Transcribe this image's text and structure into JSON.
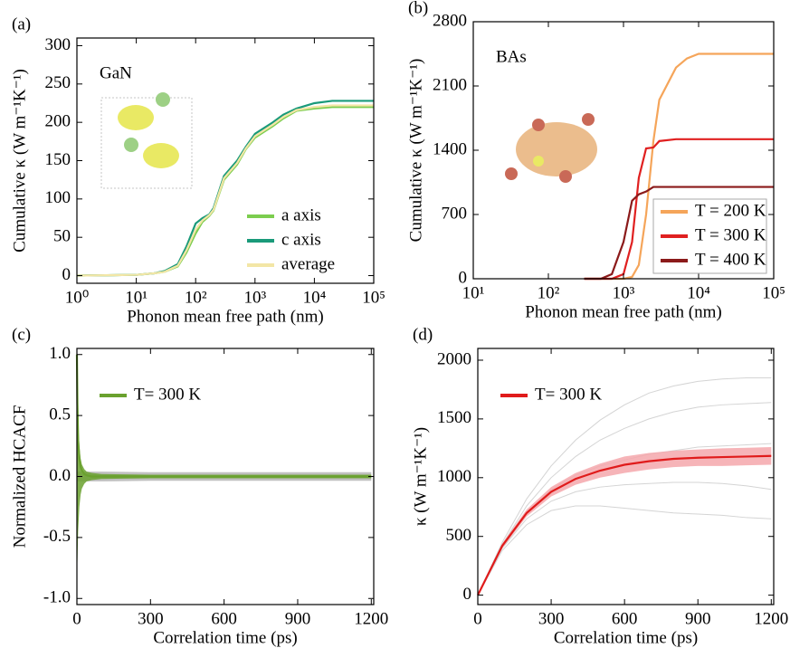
{
  "chart_data": [
    {
      "type": "line",
      "panel_label": "(a)",
      "annotation": "GaN",
      "x_label": "Phonon mean free path (nm)",
      "y_label": "Cumulative κ (W m⁻¹K⁻¹)",
      "x_scale": "log",
      "xlim": [
        1,
        100000
      ],
      "xticks": [
        {
          "value": 1,
          "label": "10⁰"
        },
        {
          "value": 10,
          "label": "10¹"
        },
        {
          "value": 100,
          "label": "10²"
        },
        {
          "value": 1000,
          "label": "10³"
        },
        {
          "value": 10000,
          "label": "10⁴"
        },
        {
          "value": 100000,
          "label": "10⁵"
        }
      ],
      "ylim": [
        -10,
        310
      ],
      "yticks": [
        0,
        50,
        100,
        150,
        200,
        250,
        300
      ],
      "legend": "lower right",
      "x": [
        1,
        10,
        20,
        30,
        50,
        70,
        100,
        130,
        170,
        200,
        300,
        500,
        700,
        1000,
        2000,
        3000,
        5000,
        10000,
        20000,
        100000
      ],
      "series": [
        {
          "name": "a axis",
          "color": "#7ccd4f",
          "values": [
            0,
            1,
            3,
            5,
            12,
            30,
            55,
            70,
            78,
            85,
            125,
            145,
            165,
            180,
            195,
            205,
            215,
            218,
            220,
            220
          ]
        },
        {
          "name": "c axis",
          "color": "#1a9a7a",
          "values": [
            0,
            1,
            3,
            6,
            15,
            38,
            68,
            75,
            80,
            88,
            130,
            150,
            168,
            185,
            200,
            210,
            218,
            225,
            228,
            228
          ]
        },
        {
          "name": "average",
          "color": "#f3e6a6",
          "values": [
            0,
            1,
            3,
            5,
            13,
            33,
            60,
            72,
            79,
            86,
            127,
            147,
            166,
            182,
            197,
            207,
            216,
            220,
            222,
            222
          ]
        }
      ]
    },
    {
      "type": "line",
      "panel_label": "(b)",
      "annotation": "BAs",
      "x_label": "Phonon mean free path (nm)",
      "y_label": "Cumulative κ (W m⁻¹K⁻¹)",
      "x_scale": "log",
      "xlim": [
        10,
        100000
      ],
      "xticks": [
        {
          "value": 10,
          "label": "10¹"
        },
        {
          "value": 100,
          "label": "10²"
        },
        {
          "value": 1000,
          "label": "10³"
        },
        {
          "value": 10000,
          "label": "10⁴"
        },
        {
          "value": 100000,
          "label": "10⁵"
        }
      ],
      "ylim": [
        0,
        2800
      ],
      "yticks": [
        0,
        700,
        1400,
        2100,
        2800
      ],
      "legend": "lower right",
      "legend_frame": true,
      "x": [
        300,
        500,
        700,
        1000,
        1300,
        1600,
        2000,
        2500,
        3000,
        5000,
        7000,
        10000,
        100000
      ],
      "series": [
        {
          "name": "T = 200 K",
          "color": "#f5a55a",
          "values": [
            0,
            0,
            0,
            0,
            20,
            150,
            700,
            1500,
            1950,
            2300,
            2400,
            2450,
            2450
          ]
        },
        {
          "name": "T = 300 K",
          "color": "#e02020",
          "values": [
            0,
            0,
            0,
            50,
            400,
            1100,
            1420,
            1430,
            1500,
            1520,
            1520,
            1520,
            1520
          ]
        },
        {
          "name": "T = 400 K",
          "color": "#8b1a1a",
          "values": [
            0,
            0,
            50,
            400,
            850,
            920,
            950,
            1000,
            1000,
            1000,
            1000,
            1000,
            1000
          ]
        }
      ]
    },
    {
      "type": "line",
      "panel_label": "(c)",
      "x_label": "Correlation time (ps)",
      "y_label": "Normalized HCACF",
      "xlim": [
        0,
        1210
      ],
      "xticks": [
        0,
        300,
        600,
        900,
        1200
      ],
      "ylim": [
        -1.05,
        1.05
      ],
      "yticks": [
        {
          "value": -1,
          "label": "-1.0"
        },
        -0.5,
        {
          "value": 0,
          "label": "0.0"
        },
        0.5,
        {
          "value": 1,
          "label": "1.0"
        }
      ],
      "legend": "upper left",
      "x": [
        0,
        2,
        5,
        10,
        15,
        20,
        30,
        40,
        60,
        100,
        300,
        600,
        900,
        1200
      ],
      "bands": [
        {
          "color": "#b5b5b5",
          "upper": [
            0.04,
            0.04,
            0.04,
            0.04,
            0.04,
            0.04,
            0.04,
            0.04,
            0.04,
            0.04,
            0.035,
            0.035,
            0.035,
            0.035
          ],
          "lower": [
            -0.04,
            -0.04,
            -0.04,
            -0.04,
            -0.04,
            -0.04,
            -0.04,
            -0.04,
            -0.04,
            -0.04,
            -0.035,
            -0.035,
            -0.035,
            -0.035
          ]
        },
        {
          "color": "#6aa12e",
          "upper": [
            0.8,
            0.7,
            0.45,
            0.25,
            0.15,
            0.1,
            0.06,
            0.04,
            0.03,
            0.02,
            0.015,
            0.015,
            0.015,
            0.015
          ],
          "lower": [
            -0.8,
            -0.7,
            -0.45,
            -0.25,
            -0.15,
            -0.1,
            -0.06,
            -0.04,
            -0.03,
            -0.02,
            -0.015,
            -0.015,
            -0.015,
            -0.015
          ]
        }
      ],
      "series": [
        {
          "name": "T= 300 K",
          "color": "#6aa12e",
          "values": [
            1.0,
            0.6,
            0.3,
            0.15,
            0.08,
            0.05,
            0.02,
            0.01,
            0,
            0,
            0,
            0,
            0,
            0
          ]
        }
      ]
    },
    {
      "type": "line",
      "panel_label": "(d)",
      "x_label": "Correlation time (ps)",
      "y_label": "κ (W m⁻¹K⁻¹)",
      "xlim": [
        0,
        1210
      ],
      "xticks": [
        0,
        300,
        600,
        900,
        1200
      ],
      "ylim": [
        -80,
        2100
      ],
      "yticks": [
        0,
        500,
        1000,
        1500,
        2000
      ],
      "legend": "upper left",
      "x": [
        0,
        100,
        200,
        300,
        400,
        500,
        600,
        700,
        800,
        900,
        1000,
        1100,
        1200
      ],
      "background_color": "#d4d4d4",
      "background_series": [
        [
          0,
          450,
          820,
          1100,
          1320,
          1490,
          1620,
          1720,
          1780,
          1820,
          1840,
          1850,
          1850
        ],
        [
          0,
          430,
          760,
          1000,
          1180,
          1320,
          1420,
          1500,
          1560,
          1600,
          1620,
          1630,
          1640
        ],
        [
          0,
          400,
          650,
          800,
          880,
          920,
          940,
          950,
          960,
          960,
          950,
          930,
          900
        ],
        [
          0,
          380,
          600,
          720,
          760,
          760,
          740,
          720,
          700,
          690,
          680,
          660,
          650
        ],
        [
          0,
          410,
          700,
          900,
          1020,
          1100,
          1150,
          1200,
          1230,
          1260,
          1270,
          1280,
          1290
        ]
      ],
      "bands": [
        {
          "color": "#f4a7ac",
          "upper": [
            0,
            440,
            730,
            920,
            1040,
            1120,
            1180,
            1210,
            1230,
            1240,
            1250,
            1255,
            1260
          ],
          "lower": [
            0,
            400,
            670,
            840,
            940,
            1000,
            1040,
            1070,
            1090,
            1100,
            1100,
            1105,
            1110
          ]
        }
      ],
      "series": [
        {
          "name": "T= 300 K",
          "color": "#e01b1b",
          "values": [
            0,
            420,
            700,
            880,
            990,
            1060,
            1110,
            1140,
            1160,
            1170,
            1175,
            1180,
            1185
          ]
        }
      ]
    }
  ]
}
